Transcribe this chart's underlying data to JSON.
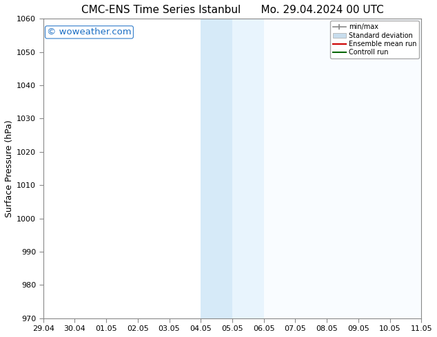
{
  "title_left": "CMC-ENS Time Series Istanbul",
  "title_right": "Mo. 29.04.2024 00 UTC",
  "ylabel": "Surface Pressure (hPa)",
  "ylim": [
    970,
    1060
  ],
  "yticks": [
    970,
    980,
    990,
    1000,
    1010,
    1020,
    1030,
    1040,
    1050,
    1060
  ],
  "xlim_start": 0.0,
  "xlim_end": 12.0,
  "xtick_labels": [
    "29.04",
    "30.04",
    "01.05",
    "02.05",
    "03.05",
    "04.05",
    "05.05",
    "06.05",
    "07.05",
    "08.05",
    "09.05",
    "10.05",
    "11.05"
  ],
  "xtick_positions": [
    0,
    1,
    2,
    3,
    4,
    5,
    6,
    7,
    8,
    9,
    10,
    11,
    12
  ],
  "highlight_region1_start": 5.0,
  "highlight_region1_end": 6.0,
  "highlight_region2_start": 6.0,
  "highlight_region2_end": 7.0,
  "highlight_color1": "#d6eaf8",
  "highlight_color2": "#e8f4fd",
  "divider_x": 6.0,
  "watermark": "© woweather.com",
  "watermark_color": "#1a6ec4",
  "watermark_fontsize": 9.5,
  "legend_labels": [
    "min/max",
    "Standard deviation",
    "Ensemble mean run",
    "Controll run"
  ],
  "title_fontsize": 11,
  "axis_label_fontsize": 9,
  "tick_fontsize": 8,
  "background_color": "#ffffff",
  "plot_bg_color": "#ffffff",
  "spine_color": "#888888",
  "right_strip_color": "#ddeeff"
}
